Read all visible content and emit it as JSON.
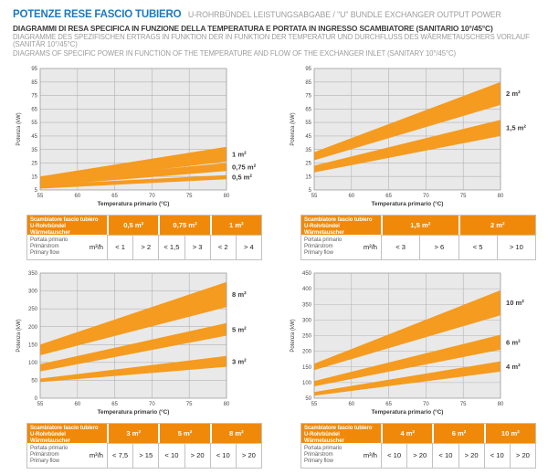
{
  "header": {
    "title_it": "POTENZE RESE FASCIO TUBIERO",
    "title_other": "U-ROHRBÜNDEL LEISTUNGSABGABE / \"U\" BUNDLE EXCHANGER OUTPUT POWER",
    "subtitle_it": "DIAGRAMMI DI RESA SPECIFICA IN FUNZIONE DELLA TEMPERATURA E PORTATA IN INGRESSO SCAMBIATORE (SANITARIO 10°/45°C)",
    "subtitle_de": "DIAGRAMME DES SPEZIFISCHEN ERTRAGS IN FUNKTION DER IN FUNKTION DER TEMPERATUR UND DURCHFLUSS DES WÄERMETAUSCHERS VORLAUF (SANITÄR 10°/45°C)",
    "subtitle_en": "DIAGRAMS OF SPECIFIC POWER IN FUNCTION OF THE TEMPERATURE AND FLOW OF THE EXCHANGER INLET (SANITARY 10°/45°C)"
  },
  "colors": {
    "accent_blue": "#1b7ac0",
    "band_orange": "#F59B1F",
    "table_header_orange": "#F0890A",
    "plot_bg": "#E9E9E9",
    "grid_line": "#b3b3b3",
    "plot_border": "#9e9e9e",
    "tick_text": "#4a4a4a",
    "band_label_text": "#3a3a3a"
  },
  "chart_data": [
    {
      "type": "area",
      "title": "",
      "xlabel": "Temperatura primario (°C)",
      "ylabel": "Potenza (kW)",
      "xlim": [
        55,
        80
      ],
      "x_ticks": [
        55,
        60,
        65,
        70,
        75,
        80
      ],
      "ylim": [
        5,
        95
      ],
      "y_ticks": [
        5,
        15,
        25,
        35,
        45,
        55,
        65,
        75,
        85,
        95
      ],
      "grid": true,
      "legend_position": "right-of-bands",
      "bands": [
        {
          "label": "1 m²",
          "x": [
            55,
            80
          ],
          "lower": [
            10,
            26
          ],
          "upper": [
            15,
            37
          ]
        },
        {
          "label": "0,75 m²",
          "x": [
            55,
            80
          ],
          "lower": [
            8,
            19
          ],
          "upper": [
            12,
            25
          ]
        },
        {
          "label": "0,5 m²",
          "x": [
            55,
            80
          ],
          "lower": [
            6,
            13
          ],
          "upper": [
            9,
            16
          ]
        }
      ]
    },
    {
      "type": "area",
      "title": "",
      "xlabel": "Temperatura primario (°C)",
      "ylabel": "Potenza (kW)",
      "xlim": [
        55,
        80
      ],
      "x_ticks": [
        55,
        60,
        65,
        70,
        75,
        80
      ],
      "ylim": [
        5,
        95
      ],
      "y_ticks": [
        5,
        15,
        25,
        35,
        45,
        55,
        65,
        75,
        85,
        95
      ],
      "grid": true,
      "legend_position": "right-of-bands",
      "bands": [
        {
          "label": "2 m²",
          "x": [
            55,
            80
          ],
          "lower": [
            27,
            68
          ],
          "upper": [
            33,
            85
          ]
        },
        {
          "label": "1,5 m²",
          "x": [
            55,
            80
          ],
          "lower": [
            18,
            45
          ],
          "upper": [
            23,
            57
          ]
        }
      ]
    },
    {
      "type": "area",
      "title": "",
      "xlabel": "Temperatura primario (°C)",
      "ylabel": "Potenza (kW)",
      "xlim": [
        55,
        80
      ],
      "x_ticks": [
        55,
        60,
        65,
        70,
        75,
        80
      ],
      "ylim": [
        0,
        350
      ],
      "y_ticks": [
        0,
        50,
        100,
        150,
        200,
        250,
        300,
        350
      ],
      "grid": true,
      "legend_position": "right-of-bands",
      "bands": [
        {
          "label": "8 m²",
          "x": [
            55,
            80
          ],
          "lower": [
            120,
            255
          ],
          "upper": [
            150,
            325
          ]
        },
        {
          "label": "5 m²",
          "x": [
            55,
            80
          ],
          "lower": [
            75,
            175
          ],
          "upper": [
            95,
            210
          ]
        },
        {
          "label": "3 m²",
          "x": [
            55,
            80
          ],
          "lower": [
            45,
            88
          ],
          "upper": [
            55,
            118
          ]
        }
      ]
    },
    {
      "type": "area",
      "title": "",
      "xlabel": "Temperatura primario (°C)",
      "ylabel": "Potenza (kW)",
      "xlim": [
        55,
        80
      ],
      "x_ticks": [
        55,
        60,
        65,
        70,
        75,
        80
      ],
      "ylim": [
        50,
        450
      ],
      "y_ticks": [
        50,
        100,
        150,
        200,
        250,
        300,
        350,
        400,
        450
      ],
      "grid": true,
      "legend_position": "right-of-bands",
      "bands": [
        {
          "label": "10 m²",
          "x": [
            55,
            80
          ],
          "lower": [
            140,
            315
          ],
          "upper": [
            160,
            395
          ]
        },
        {
          "label": "6 m²",
          "x": [
            55,
            80
          ],
          "lower": [
            88,
            205
          ],
          "upper": [
            105,
            253
          ]
        },
        {
          "label": "4 m²",
          "x": [
            55,
            80
          ],
          "lower": [
            58,
            135
          ],
          "upper": [
            70,
            168
          ]
        }
      ]
    }
  ],
  "tables": [
    {
      "header_lines": [
        "Scambiatore fascio tubiero",
        "U-Rohrbündel Wärmetauscher",
        "\"U\" bundle exchanger"
      ],
      "row_label_lines": [
        "Portata primario",
        "Primärstrom",
        "Primary flow"
      ],
      "unit": "m³/h",
      "sizes": [
        "0,5 m²",
        "0,75 m²",
        "1 m²"
      ],
      "values": [
        [
          "< 1",
          "> 2"
        ],
        [
          "< 1,5",
          "> 3"
        ],
        [
          "< 2",
          "> 4"
        ]
      ]
    },
    {
      "header_lines": [
        "Scambiatore fascio tubiero",
        "U-Rohrbündel Wärmetauscher",
        "\"U\" bundle exchanger"
      ],
      "row_label_lines": [
        "Portata primario",
        "Primärstrom",
        "Primary flow"
      ],
      "unit": "m³/h",
      "sizes": [
        "1,5 m²",
        "2 m²"
      ],
      "values": [
        [
          "< 3",
          "> 6"
        ],
        [
          "< 5",
          "> 10"
        ]
      ]
    },
    {
      "header_lines": [
        "Scambiatore fascio tubiero",
        "U-Rohrbündel Wärmetauscher",
        "\"U\" bundle exchanger"
      ],
      "row_label_lines": [
        "Portata primario",
        "Primärstrom",
        "Primary flow"
      ],
      "unit": "m³/h",
      "sizes": [
        "3 m²",
        "5 m²",
        "8 m²"
      ],
      "values": [
        [
          "< 7,5",
          "> 15"
        ],
        [
          "< 10",
          "> 20"
        ],
        [
          "< 10",
          "> 20"
        ]
      ]
    },
    {
      "header_lines": [
        "Scambiatore fascio tubiero",
        "U-Rohrbündel Wärmetauscher",
        "\"U\" bundle exchanger"
      ],
      "row_label_lines": [
        "Portata primario",
        "Primärstrom",
        "Primary flow"
      ],
      "unit": "m³/h",
      "sizes": [
        "4 m²",
        "6 m²",
        "10 m²"
      ],
      "values": [
        [
          "< 10",
          "> 20"
        ],
        [
          "< 10",
          "> 20"
        ],
        [
          "< 10",
          "> 20"
        ]
      ]
    }
  ]
}
